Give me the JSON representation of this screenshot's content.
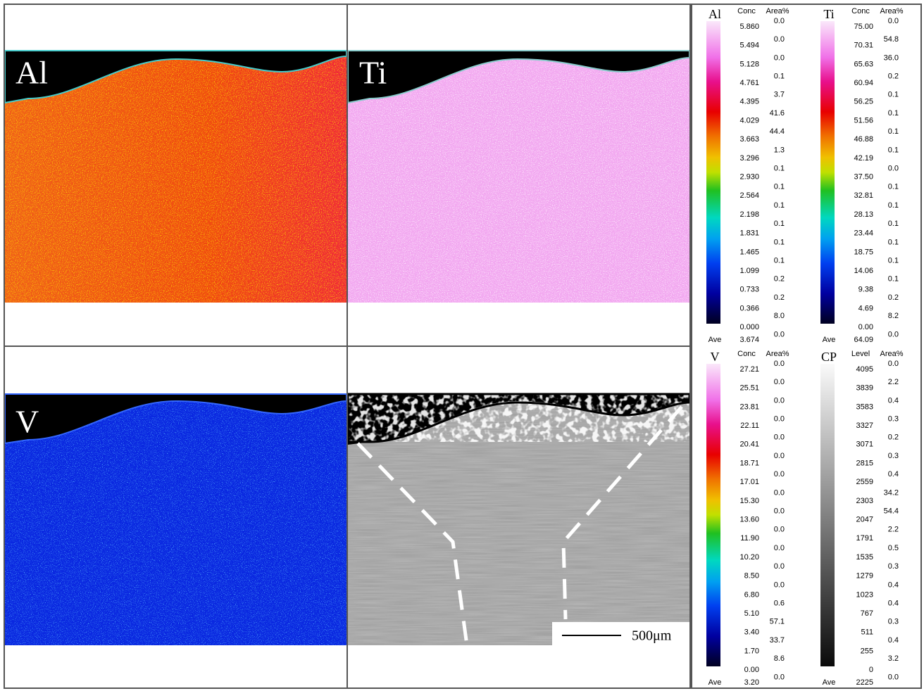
{
  "panels": [
    {
      "label": "Al"
    },
    {
      "label": "Ti"
    },
    {
      "label": "V"
    },
    {
      "scale_bar": "500μm"
    }
  ],
  "scales": [
    {
      "element": "Al",
      "headers": [
        "Conc",
        "Area%"
      ],
      "levels": [
        "5.860",
        "5.494",
        "5.128",
        "4.761",
        "4.395",
        "4.029",
        "3.663",
        "3.296",
        "2.930",
        "2.564",
        "2.198",
        "1.831",
        "1.465",
        "1.099",
        "0.733",
        "0.366",
        "0.000"
      ],
      "area": [
        "0.0",
        "0.0",
        "0.0",
        "0.1",
        "3.7",
        "41.6",
        "44.4",
        "1.3",
        "0.1",
        "0.1",
        "0.1",
        "0.1",
        "0.1",
        "0.1",
        "0.2",
        "0.2",
        "8.0",
        "0.0"
      ],
      "ave_label": "Ave",
      "ave": "3.674"
    },
    {
      "element": "Ti",
      "headers": [
        "Conc",
        "Area%"
      ],
      "levels": [
        "75.00",
        "70.31",
        "65.63",
        "60.94",
        "56.25",
        "51.56",
        "46.88",
        "42.19",
        "37.50",
        "32.81",
        "28.13",
        "23.44",
        "18.75",
        "14.06",
        "9.38",
        "4.69",
        "0.00"
      ],
      "area": [
        "0.0",
        "54.8",
        "36.0",
        "0.2",
        "0.1",
        "0.1",
        "0.1",
        "0.1",
        "0.0",
        "0.1",
        "0.1",
        "0.1",
        "0.1",
        "0.1",
        "0.1",
        "0.2",
        "8.2",
        "0.0"
      ],
      "ave_label": "Ave",
      "ave": "64.09"
    },
    {
      "element": "V",
      "headers": [
        "Conc",
        "Area%"
      ],
      "levels": [
        "27.21",
        "25.51",
        "23.81",
        "22.11",
        "20.41",
        "18.71",
        "17.01",
        "15.30",
        "13.60",
        "11.90",
        "10.20",
        "8.50",
        "6.80",
        "5.10",
        "3.40",
        "1.70",
        "0.00"
      ],
      "area": [
        "0.0",
        "0.0",
        "0.0",
        "0.0",
        "0.0",
        "0.0",
        "0.0",
        "0.0",
        "0.0",
        "0.0",
        "0.0",
        "0.0",
        "0.0",
        "0.6",
        "57.1",
        "33.7",
        "8.6",
        "0.0"
      ],
      "ave_label": "Ave",
      "ave": "3.20"
    },
    {
      "element": "CP",
      "headers": [
        "Level",
        "Area%"
      ],
      "levels": [
        "4095",
        "3839",
        "3583",
        "3327",
        "3071",
        "2815",
        "2559",
        "2303",
        "2047",
        "1791",
        "1535",
        "1279",
        "1023",
        "767",
        "511",
        "255",
        "0"
      ],
      "area": [
        "0.0",
        "2.2",
        "0.4",
        "0.3",
        "0.2",
        "0.3",
        "0.4",
        "34.2",
        "54.4",
        "2.2",
        "0.5",
        "0.3",
        "0.4",
        "0.4",
        "0.3",
        "0.4",
        "3.2",
        "0.0"
      ],
      "ave_label": "Ave",
      "ave": "2225"
    }
  ]
}
